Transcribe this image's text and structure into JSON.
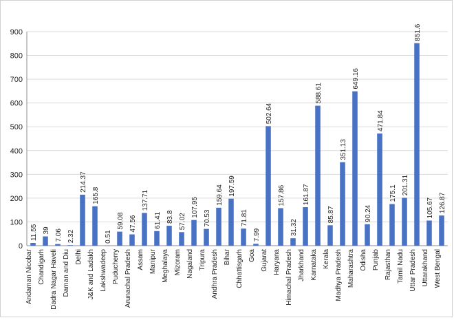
{
  "chart_data": {
    "type": "bar",
    "title": "",
    "xlabel": "",
    "ylabel": "",
    "ylim": [
      0,
      900
    ],
    "yticks": [
      "0",
      "100",
      "200",
      "300",
      "400",
      "500",
      "600",
      "700",
      "800",
      "900"
    ],
    "grid": true,
    "legend": "none",
    "bar_color": "#4a72c4",
    "categories": [
      "Andaman Nicobar",
      "Chandigarh",
      "Dadra Nagar Haveli",
      "Daman and Diu",
      "Delhi",
      "J&K and Ladakh",
      "Lakshwadeep",
      "Puducherry",
      "Arunachal Pradesh",
      "Assam",
      "Manipur",
      "Meghalaya",
      "Mizoram",
      "Nagaland",
      "Tripura",
      "Andhra Pradesh",
      "Bihar",
      "Chhattisgarh",
      "Goa",
      "Gujarat",
      "Haryana",
      "Himachal Pradesh",
      "Jharkhand",
      "Karnataka",
      "Kerala",
      "Madhya Pradesh",
      "Maharashtra",
      "Odisha",
      "Punjab",
      "Rajasthan",
      "Tamil Nadu",
      "Uttar Pradesh",
      "Uttarakhand",
      "West Bengal"
    ],
    "values": [
      11.55,
      39,
      7.06,
      2.32,
      214.37,
      165.8,
      0.51,
      59.08,
      47.56,
      137.71,
      61.41,
      83.8,
      57.02,
      107.95,
      70.53,
      159.64,
      197.59,
      71.81,
      7.99,
      502.64,
      157.86,
      31.32,
      161.87,
      588.61,
      85.87,
      351.13,
      649.16,
      90.24,
      471.84,
      175.1,
      201.31,
      851.6,
      105.67,
      126.87
    ],
    "value_labels": [
      "11.55",
      "39",
      "7.06",
      "2.32",
      "214.37",
      "165.8",
      "0.51",
      "59.08",
      "47.56",
      "137.71",
      "61.41",
      "83.8",
      "57.02",
      "107.95",
      "70.53",
      "159.64",
      "197.59",
      "71.81",
      "7.99",
      "502.64",
      "157.86",
      "31.32",
      "161.87",
      "588.61",
      "85.87",
      "351.13",
      "649.16",
      "90.24",
      "471.84",
      "175.1",
      "201.31",
      "851.6",
      "105.67",
      "126.87"
    ]
  }
}
